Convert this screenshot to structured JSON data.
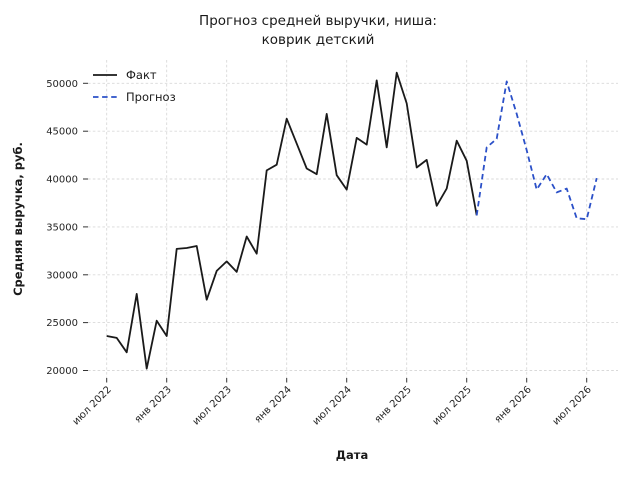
{
  "figure": {
    "background": "#ffffff",
    "grid_color": "#d9d9d9",
    "tick_color": "#333333"
  },
  "chart_data": {
    "type": "line",
    "title_lines": [
      "Прогноз средней выручки, ниша:",
      "коврик детский"
    ],
    "title": "Прогноз средней выручки, ниша: коврик детский",
    "xlabel": "Дата",
    "ylabel": "Средняя выручка, руб.",
    "grid": true,
    "legend_position": "upper left",
    "x_tick_labels": [
      "июл 2022",
      "янв 2023",
      "июл 2023",
      "янв 2024",
      "июл 2024",
      "янв 2025",
      "июл 2025",
      "янв 2026",
      "июл 2026"
    ],
    "x_tick_month_offsets": [
      0,
      6,
      12,
      18,
      24,
      30,
      36,
      42,
      48
    ],
    "y_tick_values": [
      20000,
      25000,
      30000,
      35000,
      40000,
      45000,
      50000
    ],
    "ylim": [
      19200,
      52500
    ],
    "x_unit": "month",
    "series": [
      {
        "name": "Факт",
        "color": "#1a1a1a",
        "line_style": "solid",
        "start_label": "июл 2022",
        "end_label": "авг 2025",
        "start_month_offset": 0,
        "values": [
          23600,
          23400,
          21900,
          28000,
          20200,
          25200,
          23600,
          32700,
          32800,
          33000,
          27400,
          30400,
          31400,
          30300,
          34000,
          32200,
          40900,
          41500,
          46300,
          43700,
          41100,
          40500,
          46800,
          40400,
          38900,
          44300,
          43600,
          50300,
          43300,
          51100,
          47900,
          41200,
          42000,
          37200,
          39000,
          44000,
          41900,
          36200
        ]
      },
      {
        "name": "Прогноз",
        "color": "#2b50c8",
        "line_style": "dashed",
        "start_label": "авг 2025",
        "end_label": "авг 2026",
        "start_month_offset": 37,
        "values": [
          36200,
          43300,
          44200,
          50200,
          46800,
          43000,
          38900,
          40500,
          38600,
          39000,
          35900,
          35800,
          40100
        ]
      }
    ]
  }
}
